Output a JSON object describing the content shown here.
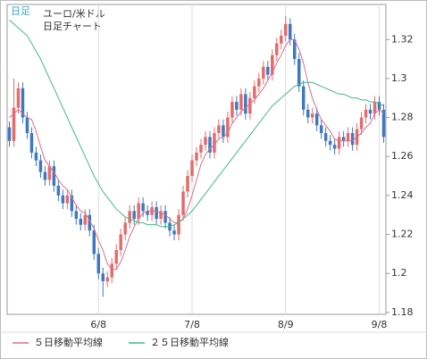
{
  "chart_data": {
    "type": "candlestick",
    "corner_label": "日足",
    "title": "ユーロ/米ドル",
    "subtitle": "日足チャート",
    "categories": [
      null,
      null,
      null,
      null,
      null,
      null,
      null,
      null,
      null,
      null,
      null,
      null,
      null,
      null,
      null,
      null,
      null,
      null,
      null,
      null,
      "6/8",
      null,
      null,
      null,
      null,
      null,
      null,
      null,
      null,
      null,
      null,
      null,
      null,
      null,
      null,
      null,
      null,
      null,
      null,
      null,
      null,
      "7/8",
      null,
      null,
      null,
      null,
      null,
      null,
      null,
      null,
      null,
      null,
      null,
      null,
      null,
      null,
      null,
      null,
      null,
      null,
      null,
      null,
      "8/9",
      null,
      null,
      null,
      null,
      null,
      null,
      null,
      null,
      null,
      null,
      null,
      null,
      null,
      null,
      null,
      null,
      null,
      null,
      null,
      null,
      "9/8",
      null
    ],
    "open": [
      1.275,
      1.268,
      1.285,
      1.295,
      1.28,
      1.272,
      1.262,
      1.258,
      1.252,
      1.248,
      1.255,
      1.245,
      1.24,
      1.236,
      1.24,
      1.232,
      1.228,
      1.225,
      1.23,
      1.222,
      1.21,
      1.2,
      1.196,
      1.198,
      1.205,
      1.212,
      1.22,
      1.226,
      1.232,
      1.228,
      1.236,
      1.232,
      1.23,
      1.234,
      1.228,
      1.232,
      1.226,
      1.222,
      1.22,
      1.23,
      1.242,
      1.25,
      1.258,
      1.262,
      1.266,
      1.27,
      1.262,
      1.272,
      1.276,
      1.27,
      1.28,
      1.288,
      1.284,
      1.292,
      1.282,
      1.29,
      1.296,
      1.3,
      1.306,
      1.302,
      1.312,
      1.318,
      1.322,
      1.328,
      1.32,
      1.31,
      1.296,
      1.284,
      1.28,
      1.282,
      1.276,
      1.272,
      1.268,
      1.266,
      1.264,
      1.27,
      1.268,
      1.272,
      1.266,
      1.274,
      1.28,
      1.284,
      1.282,
      1.288,
      1.284
    ],
    "high": [
      1.278,
      1.3,
      1.298,
      1.298,
      1.283,
      1.275,
      1.265,
      1.261,
      1.255,
      1.258,
      1.258,
      1.248,
      1.243,
      1.243,
      1.243,
      1.235,
      1.231,
      1.233,
      1.233,
      1.225,
      1.213,
      1.203,
      1.201,
      1.208,
      1.215,
      1.223,
      1.229,
      1.235,
      1.235,
      1.239,
      1.239,
      1.235,
      1.237,
      1.237,
      1.235,
      1.235,
      1.229,
      1.225,
      1.233,
      1.245,
      1.253,
      1.261,
      1.265,
      1.269,
      1.273,
      1.273,
      1.275,
      1.279,
      1.279,
      1.283,
      1.291,
      1.291,
      1.295,
      1.295,
      1.293,
      1.299,
      1.303,
      1.309,
      1.309,
      1.315,
      1.321,
      1.325,
      1.332,
      1.331,
      1.323,
      1.313,
      1.299,
      1.287,
      1.285,
      1.285,
      1.279,
      1.275,
      1.271,
      1.269,
      1.273,
      1.273,
      1.275,
      1.275,
      1.277,
      1.283,
      1.287,
      1.287,
      1.291,
      1.291,
      1.287
    ],
    "low": [
      1.265,
      1.265,
      1.282,
      1.277,
      1.269,
      1.259,
      1.255,
      1.249,
      1.245,
      1.245,
      1.242,
      1.237,
      1.233,
      1.233,
      1.229,
      1.225,
      1.222,
      1.222,
      1.219,
      1.207,
      1.197,
      1.188,
      1.193,
      1.195,
      1.202,
      1.209,
      1.217,
      1.223,
      1.225,
      1.225,
      1.229,
      1.227,
      1.227,
      1.225,
      1.225,
      1.223,
      1.219,
      1.217,
      1.217,
      1.227,
      1.239,
      1.247,
      1.255,
      1.259,
      1.263,
      1.259,
      1.259,
      1.269,
      1.267,
      1.267,
      1.277,
      1.281,
      1.281,
      1.279,
      1.279,
      1.287,
      1.293,
      1.297,
      1.299,
      1.299,
      1.309,
      1.315,
      1.319,
      1.317,
      1.307,
      1.293,
      1.281,
      1.277,
      1.277,
      1.273,
      1.269,
      1.265,
      1.263,
      1.261,
      1.261,
      1.265,
      1.265,
      1.263,
      1.263,
      1.271,
      1.277,
      1.279,
      1.279,
      1.281,
      1.267
    ],
    "close": [
      1.268,
      1.285,
      1.295,
      1.28,
      1.272,
      1.262,
      1.258,
      1.252,
      1.248,
      1.255,
      1.245,
      1.24,
      1.236,
      1.24,
      1.232,
      1.228,
      1.225,
      1.23,
      1.222,
      1.21,
      1.2,
      1.196,
      1.198,
      1.205,
      1.212,
      1.22,
      1.226,
      1.232,
      1.228,
      1.236,
      1.232,
      1.23,
      1.234,
      1.228,
      1.232,
      1.226,
      1.222,
      1.22,
      1.23,
      1.242,
      1.25,
      1.258,
      1.262,
      1.266,
      1.27,
      1.262,
      1.272,
      1.276,
      1.27,
      1.28,
      1.288,
      1.284,
      1.292,
      1.282,
      1.29,
      1.296,
      1.3,
      1.306,
      1.302,
      1.312,
      1.318,
      1.322,
      1.328,
      1.32,
      1.31,
      1.296,
      1.284,
      1.28,
      1.282,
      1.276,
      1.272,
      1.268,
      1.266,
      1.264,
      1.27,
      1.268,
      1.272,
      1.266,
      1.274,
      1.28,
      1.284,
      1.282,
      1.288,
      1.284,
      1.27
    ],
    "up_color": "#e46b6b",
    "down_color": "#3f78c0",
    "series": [
      {
        "name": "５日移動平均線",
        "color": "#d86f8c",
        "values": [
          1.28,
          1.282,
          1.284,
          1.282,
          1.28,
          1.279,
          1.273,
          1.265,
          1.258,
          1.255,
          1.252,
          1.248,
          1.245,
          1.243,
          1.239,
          1.235,
          1.232,
          1.231,
          1.227,
          1.223,
          1.217,
          1.212,
          1.205,
          1.202,
          1.202,
          1.206,
          1.212,
          1.219,
          1.224,
          1.228,
          1.231,
          1.232,
          1.232,
          1.232,
          1.231,
          1.23,
          1.228,
          1.226,
          1.226,
          1.228,
          1.233,
          1.24,
          1.248,
          1.256,
          1.261,
          1.264,
          1.266,
          1.269,
          1.27,
          1.272,
          1.277,
          1.28,
          1.283,
          1.285,
          1.287,
          1.289,
          1.292,
          1.295,
          1.299,
          1.303,
          1.308,
          1.312,
          1.317,
          1.32,
          1.32,
          1.315,
          1.308,
          1.298,
          1.29,
          1.284,
          1.279,
          1.276,
          1.273,
          1.269,
          1.268,
          1.268,
          1.268,
          1.268,
          1.27,
          1.272,
          1.275,
          1.277,
          1.282,
          1.284,
          1.282
        ]
      },
      {
        "name": "２５日移動平均線",
        "color": "#45b886",
        "values": [
          1.33,
          1.328,
          1.326,
          1.324,
          1.322,
          1.318,
          1.314,
          1.31,
          1.305,
          1.3,
          1.295,
          1.29,
          1.285,
          1.28,
          1.275,
          1.27,
          1.265,
          1.26,
          1.255,
          1.25,
          1.246,
          1.242,
          1.239,
          1.236,
          1.233,
          1.231,
          1.229,
          1.228,
          1.227,
          1.226,
          1.226,
          1.225,
          1.225,
          1.225,
          1.224,
          1.224,
          1.224,
          1.225,
          1.226,
          1.228,
          1.23,
          1.232,
          1.235,
          1.238,
          1.241,
          1.244,
          1.247,
          1.25,
          1.253,
          1.256,
          1.259,
          1.262,
          1.265,
          1.268,
          1.271,
          1.274,
          1.277,
          1.28,
          1.283,
          1.286,
          1.288,
          1.29,
          1.292,
          1.294,
          1.296,
          1.297,
          1.298,
          1.298,
          1.298,
          1.297,
          1.296,
          1.295,
          1.294,
          1.293,
          1.292,
          1.292,
          1.291,
          1.29,
          1.29,
          1.289,
          1.289,
          1.288,
          1.288,
          1.287,
          1.286
        ]
      }
    ],
    "ylim": [
      1.179,
      1.338
    ],
    "yticks": [
      1.18,
      1.2,
      1.22,
      1.24,
      1.26,
      1.28,
      1.3,
      1.32
    ],
    "grid": "x"
  }
}
